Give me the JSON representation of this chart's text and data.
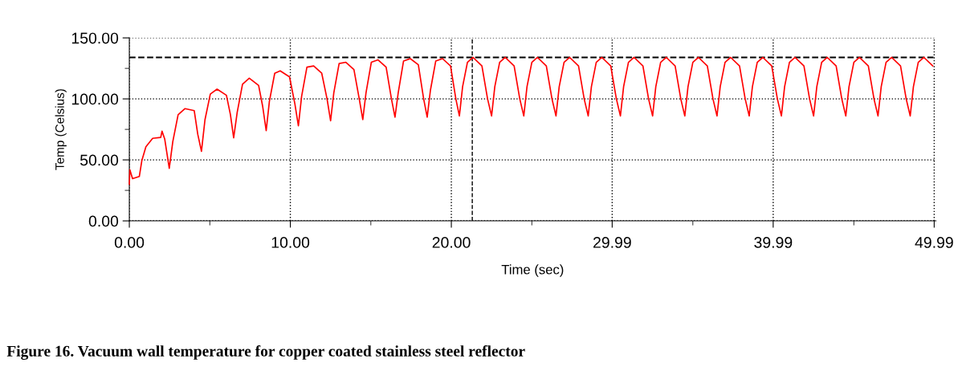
{
  "chart_data": {
    "type": "line",
    "xlabel": "Time (sec)",
    "ylabel": "Temp (Celsius)",
    "annotations": [
      "Figure 16. Vacuum wall temperature for copper coated stainless steel reflector"
    ],
    "x": [
      0,
      0.03,
      0.2,
      0.62,
      0.78,
      1.03,
      1.45,
      1.95,
      2.03,
      2.2,
      2.48,
      2.7,
      3.03,
      3.45,
      4.03,
      4.25,
      4.48,
      4.7,
      5.03,
      5.45,
      6.03,
      6.28,
      6.48,
      6.7,
      7.03,
      7.45,
      8.03,
      8.28,
      8.5,
      8.7,
      9.03,
      9.37,
      9.95,
      10.28,
      10.5,
      10.7,
      11.03,
      11.45,
      11.95,
      12.28,
      12.5,
      12.7,
      13.03,
      13.45,
      13.95,
      14.28,
      14.5,
      14.7,
      15.03,
      15.45,
      15.95,
      16.28,
      16.5,
      16.7,
      17.03,
      17.45,
      17.95,
      18.28,
      18.5,
      18.7,
      19.03,
      19.45,
      19.95,
      20.28,
      20.5,
      20.7,
      21,
      21.35,
      21.9,
      22.25,
      22.5,
      22.7,
      23,
      23.35,
      23.9,
      24.25,
      24.5,
      24.7,
      25,
      25.35,
      25.9,
      26.25,
      26.5,
      26.7,
      27,
      27.35,
      27.9,
      28.25,
      28.5,
      28.7,
      29,
      29.35,
      29.9,
      30.25,
      30.5,
      30.7,
      31,
      31.35,
      31.9,
      32.25,
      32.5,
      32.7,
      33,
      33.35,
      33.9,
      34.25,
      34.5,
      34.7,
      35,
      35.35,
      35.9,
      36.25,
      36.5,
      36.7,
      37,
      37.35,
      37.9,
      38.25,
      38.5,
      38.7,
      39,
      39.35,
      39.9,
      40.25,
      40.5,
      40.7,
      41,
      41.35,
      41.9,
      42.25,
      42.5,
      42.7,
      43,
      43.35,
      43.9,
      44.25,
      44.5,
      44.7,
      45,
      45.35,
      45.9,
      46.25,
      46.5,
      46.7,
      47,
      47.35,
      47.9,
      48.25,
      48.5,
      48.7,
      49,
      49.35,
      49.9
    ],
    "series": [
      {
        "color": "#ff0000",
        "values": [
          30,
          42,
          34.6,
          36.4,
          49.6,
          60.7,
          67.7,
          68.4,
          73.5,
          67,
          43,
          65,
          87,
          92,
          90.4,
          71,
          57,
          83,
          104,
          108,
          103,
          87,
          68,
          89,
          112,
          117,
          111,
          94,
          74,
          98,
          121,
          123,
          118,
          96,
          78,
          102,
          126,
          127,
          121,
          100,
          82,
          105,
          129,
          130,
          124,
          100,
          83,
          105,
          130,
          132,
          126,
          100,
          85,
          105,
          131,
          133,
          128,
          100,
          85,
          107,
          131,
          133,
          127,
          100,
          86,
          110,
          130,
          134,
          127,
          100,
          86,
          110,
          130,
          134,
          127,
          100,
          86,
          110,
          130,
          134,
          127,
          100,
          86,
          110,
          130,
          134,
          127,
          100,
          86,
          110,
          130,
          134,
          127,
          100,
          86,
          110,
          130,
          134,
          127,
          100,
          86,
          110,
          130,
          134,
          127,
          100,
          86,
          110,
          130,
          134,
          127,
          100,
          86,
          110,
          130,
          134,
          127,
          100,
          86,
          110,
          130,
          134,
          127,
          100,
          86,
          110,
          130,
          134,
          127,
          100,
          86,
          110,
          130,
          134,
          127,
          100,
          86,
          110,
          130,
          134,
          127,
          100,
          86,
          110,
          130,
          134,
          127,
          100,
          86,
          110,
          130,
          134,
          127
        ]
      }
    ],
    "xlim": [
      0,
      50.1
    ],
    "ylim": [
      0,
      150
    ],
    "xticks": [
      {
        "value": 0,
        "label": "0.00"
      },
      {
        "value": 5,
        "label": null
      },
      {
        "value": 10,
        "label": "10.00"
      },
      {
        "value": 15,
        "label": null
      },
      {
        "value": 20,
        "label": "20.00"
      },
      {
        "value": 25,
        "label": null
      },
      {
        "value": 29.99,
        "label": "29.99"
      },
      {
        "value": 35,
        "label": null
      },
      {
        "value": 39.99,
        "label": "39.99"
      },
      {
        "value": 45,
        "label": null
      },
      {
        "value": 49.99,
        "label": "49.99"
      }
    ],
    "yticks": [
      {
        "value": 0,
        "label": "0.00"
      },
      {
        "value": 25,
        "label": null
      },
      {
        "value": 50,
        "label": "50.00"
      },
      {
        "value": 75,
        "label": null
      },
      {
        "value": 100,
        "label": "100.00"
      },
      {
        "value": 125,
        "label": null
      },
      {
        "value": 150,
        "label": "150.00"
      }
    ],
    "ref_lines": [
      {
        "axis": "y",
        "value": 134,
        "color": "#000000",
        "line_style": "dashed"
      },
      {
        "axis": "x",
        "value": 21.3,
        "color": "#000000",
        "line_style": "dashed"
      }
    ],
    "grid": true,
    "marker": "none",
    "line_style": "solid"
  }
}
